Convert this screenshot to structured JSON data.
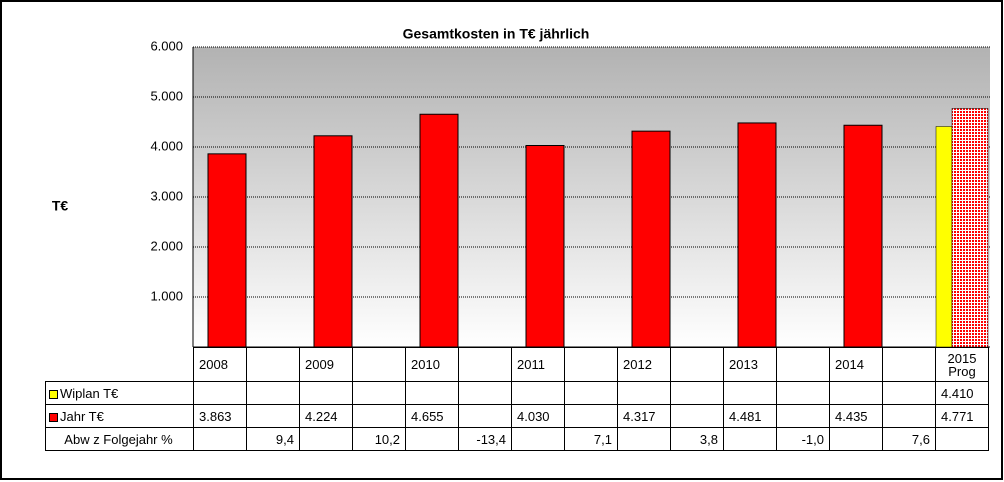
{
  "chart_data": {
    "type": "bar",
    "title": "Gesamtkosten in T€ jährlich",
    "y_label": "T€",
    "categories": [
      "2008",
      null,
      "2009",
      null,
      "2010",
      null,
      "2011",
      null,
      "2012",
      null,
      "2013",
      null,
      "2014",
      null,
      "2015 Prog"
    ],
    "series": [
      {
        "name": "Wiplan T€",
        "color": "#ffff00",
        "values": [
          null,
          null,
          null,
          null,
          null,
          null,
          null,
          null,
          null,
          null,
          null,
          null,
          null,
          null,
          4410
        ],
        "value_labels": [
          null,
          null,
          null,
          null,
          null,
          null,
          null,
          null,
          null,
          null,
          null,
          null,
          null,
          null,
          "4.410"
        ]
      },
      {
        "name": "Jahr T€",
        "color": "#ff0000",
        "values": [
          3863,
          null,
          4224,
          null,
          4655,
          null,
          4030,
          null,
          4317,
          null,
          4481,
          null,
          4435,
          null,
          4771
        ],
        "value_labels": [
          "3.863",
          null,
          "4.224",
          null,
          "4.655",
          null,
          "4.030",
          null,
          "4.317",
          null,
          "4.481",
          null,
          "4.435",
          null,
          "4.771"
        ]
      },
      {
        "name": "Abw z Folgejahr %",
        "values": [
          null,
          9.4,
          null,
          10.2,
          null,
          -13.4,
          null,
          7.1,
          null,
          3.8,
          null,
          -1.0,
          null,
          7.6,
          null
        ],
        "value_labels": [
          null,
          "9,4",
          null,
          "10,2",
          null,
          "-13,4",
          null,
          "7,1",
          null,
          "3,8",
          null,
          "-1,0",
          null,
          "7,6",
          null
        ]
      }
    ],
    "ylim": [
      0,
      6000
    ],
    "yticks": [
      {
        "value": 1000,
        "label": "1.000"
      },
      {
        "value": 2000,
        "label": "2.000"
      },
      {
        "value": 3000,
        "label": "3.000"
      },
      {
        "value": 4000,
        "label": "4.000"
      },
      {
        "value": 5000,
        "label": "5.000"
      },
      {
        "value": 6000,
        "label": "6.000"
      }
    ],
    "grid": true
  }
}
